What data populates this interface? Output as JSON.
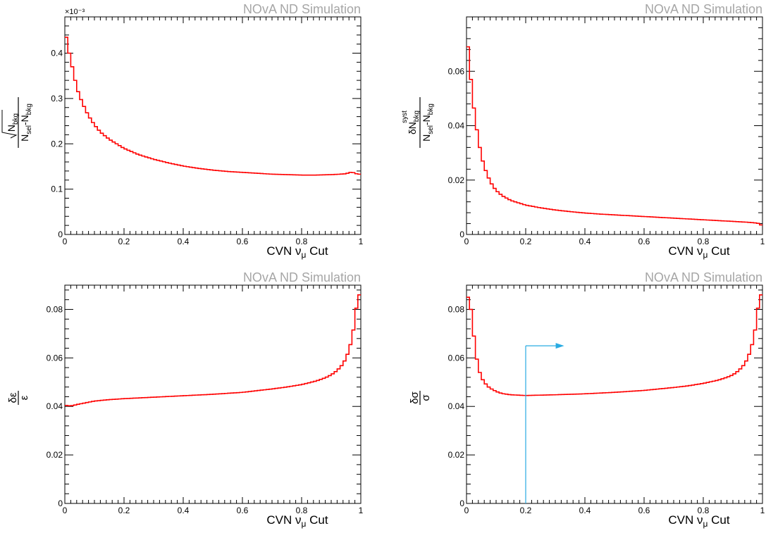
{
  "chart_data": [
    {
      "type": "line",
      "title": "NOvA ND Simulation",
      "xlabel": "CVN ν_μ Cut",
      "ylabel": "√N_bkg / (N_sel - N_bkg)",
      "multiplier": "×10⁻³",
      "xlim": [
        0,
        1
      ],
      "ylim": [
        0,
        0.48
      ],
      "xticks": [
        "0",
        "0.2",
        "0.4",
        "0.6",
        "0.8",
        "1"
      ],
      "yticks": [
        [
          0,
          "0"
        ],
        [
          0.1,
          "0.1"
        ],
        [
          0.2,
          "0.2"
        ],
        [
          0.3,
          "0.3"
        ],
        [
          0.4,
          "0.4"
        ]
      ],
      "color": "#ff0000",
      "series": [
        {
          "x": [
            0,
            0.01,
            0.02,
            0.03,
            0.04,
            0.05,
            0.06,
            0.07,
            0.08,
            0.09,
            0.1,
            0.12,
            0.15,
            0.2,
            0.25,
            0.3,
            0.35,
            0.4,
            0.45,
            0.5,
            0.55,
            0.6,
            0.65,
            0.7,
            0.75,
            0.8,
            0.85,
            0.9,
            0.93,
            0.95,
            0.97,
            0.98,
            0.99,
            1.0
          ],
          "y": [
            0.455,
            0.415,
            0.385,
            0.355,
            0.325,
            0.305,
            0.29,
            0.275,
            0.262,
            0.252,
            0.242,
            0.226,
            0.21,
            0.19,
            0.176,
            0.166,
            0.158,
            0.151,
            0.146,
            0.142,
            0.139,
            0.137,
            0.135,
            0.133,
            0.132,
            0.131,
            0.131,
            0.132,
            0.133,
            0.134,
            0.138,
            0.135,
            0.133,
            0.133
          ]
        }
      ]
    },
    {
      "type": "line",
      "title": "NOvA ND Simulation",
      "xlabel": "CVN ν_μ Cut",
      "ylabel": "δN_bkg^syst / (N_sel - N_bkg)",
      "xlim": [
        0,
        1
      ],
      "ylim": [
        0,
        0.08
      ],
      "xticks": [
        "0",
        "0.2",
        "0.4",
        "0.6",
        "0.8",
        "1"
      ],
      "yticks": [
        [
          0,
          "0"
        ],
        [
          0.02,
          "0.02"
        ],
        [
          0.04,
          "0.04"
        ],
        [
          0.06,
          "0.06"
        ]
      ],
      "color": "#ff0000",
      "series": [
        {
          "x": [
            0,
            0.01,
            0.02,
            0.03,
            0.04,
            0.05,
            0.06,
            0.07,
            0.08,
            0.09,
            0.1,
            0.12,
            0.15,
            0.2,
            0.25,
            0.3,
            0.35,
            0.4,
            0.45,
            0.5,
            0.55,
            0.6,
            0.65,
            0.7,
            0.75,
            0.8,
            0.85,
            0.9,
            0.95,
            0.98,
            0.99,
            1.0
          ],
          "y": [
            0.075,
            0.063,
            0.051,
            0.042,
            0.035,
            0.029,
            0.025,
            0.022,
            0.0195,
            0.0177,
            0.0162,
            0.0143,
            0.0125,
            0.0108,
            0.0098,
            0.009,
            0.0084,
            0.0079,
            0.0075,
            0.0072,
            0.0069,
            0.0066,
            0.0063,
            0.006,
            0.0057,
            0.0054,
            0.0051,
            0.0048,
            0.0045,
            0.0042,
            0.004,
            0.003
          ]
        }
      ]
    },
    {
      "type": "line",
      "title": "NOvA ND Simulation",
      "xlabel": "CVN ν_μ Cut",
      "ylabel": "δε / ε",
      "xlim": [
        0,
        1
      ],
      "ylim": [
        0,
        0.09
      ],
      "xticks": [
        "0",
        "0.2",
        "0.4",
        "0.6",
        "0.8",
        "1"
      ],
      "yticks": [
        [
          0,
          "0"
        ],
        [
          0.02,
          "0.02"
        ],
        [
          0.04,
          "0.04"
        ],
        [
          0.06,
          "0.06"
        ],
        [
          0.08,
          "0.08"
        ]
      ],
      "color": "#ff0000",
      "series": [
        {
          "x": [
            0,
            0.02,
            0.05,
            0.1,
            0.15,
            0.2,
            0.3,
            0.4,
            0.5,
            0.6,
            0.7,
            0.75,
            0.8,
            0.85,
            0.88,
            0.9,
            0.92,
            0.94,
            0.95,
            0.96,
            0.97,
            0.98,
            0.99,
            1.0
          ],
          "y": [
            0.0405,
            0.0402,
            0.041,
            0.0422,
            0.0428,
            0.0432,
            0.0438,
            0.0444,
            0.045,
            0.0458,
            0.0472,
            0.048,
            0.049,
            0.0505,
            0.0518,
            0.053,
            0.0548,
            0.0575,
            0.06,
            0.063,
            0.068,
            0.075,
            0.086,
            0.086
          ]
        }
      ]
    },
    {
      "type": "line",
      "title": "NOvA ND Simulation",
      "xlabel": "CVN ν_μ Cut",
      "ylabel": "δσ / σ",
      "xlim": [
        0,
        1
      ],
      "ylim": [
        0,
        0.09
      ],
      "xticks": [
        "0",
        "0.2",
        "0.4",
        "0.6",
        "0.8",
        "1"
      ],
      "yticks": [
        [
          0,
          "0"
        ],
        [
          0.02,
          "0.02"
        ],
        [
          0.04,
          "0.04"
        ],
        [
          0.06,
          "0.06"
        ],
        [
          0.08,
          "0.08"
        ]
      ],
      "color": "#ff0000",
      "cut_marker": {
        "x": 0.2,
        "y": 0.065,
        "arrow_to_x": 0.33,
        "color": "#29abe2"
      },
      "series": [
        {
          "x": [
            0,
            0.01,
            0.02,
            0.03,
            0.04,
            0.05,
            0.06,
            0.07,
            0.08,
            0.1,
            0.12,
            0.15,
            0.2,
            0.3,
            0.4,
            0.5,
            0.6,
            0.7,
            0.75,
            0.8,
            0.85,
            0.88,
            0.9,
            0.92,
            0.94,
            0.95,
            0.96,
            0.97,
            0.98,
            0.99,
            1.0
          ],
          "y": [
            0.085,
            0.085,
            0.075,
            0.063,
            0.056,
            0.052,
            0.05,
            0.0485,
            0.0475,
            0.0462,
            0.0453,
            0.0448,
            0.0445,
            0.0448,
            0.0452,
            0.0458,
            0.0466,
            0.0478,
            0.0485,
            0.0495,
            0.0508,
            0.052,
            0.053,
            0.0548,
            0.0575,
            0.06,
            0.063,
            0.068,
            0.075,
            0.086,
            0.086
          ]
        }
      ]
    }
  ]
}
